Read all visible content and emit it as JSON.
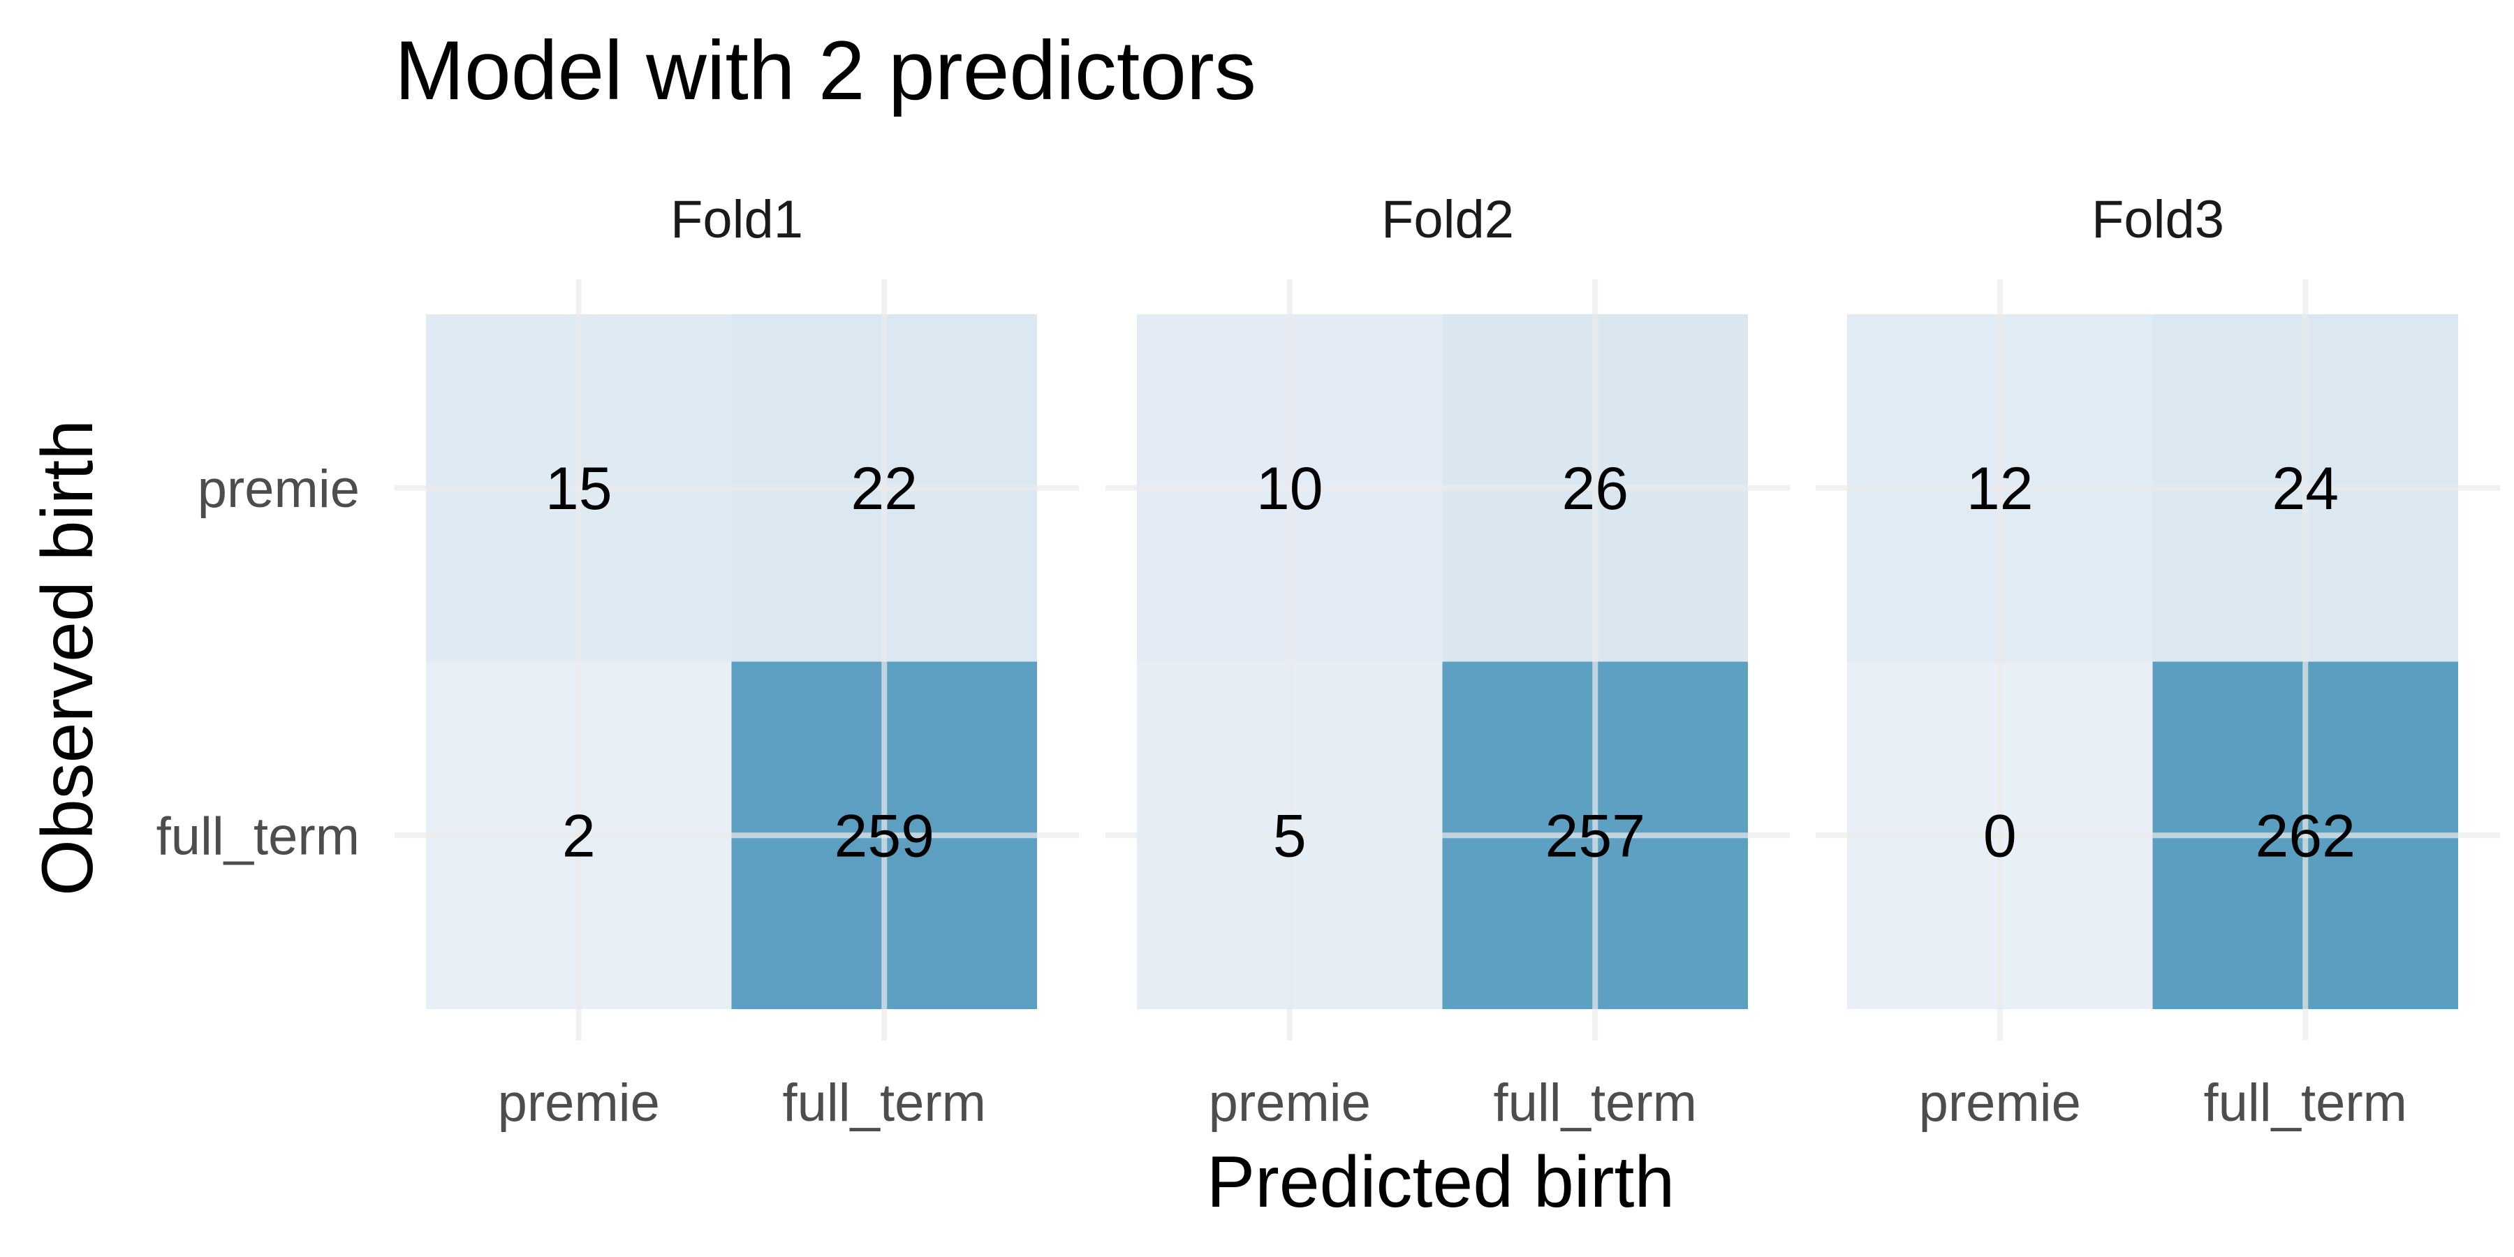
{
  "colors": {
    "low": "#e8eff6",
    "high": "#5a9ec0",
    "grid": "#ebebeb",
    "background": "#ffffff"
  },
  "chart_data": {
    "type": "heatmap",
    "title": "Model with 2 predictors",
    "xlabel": "Predicted birth",
    "ylabel": "Observed birth",
    "x_categories": [
      "premie",
      "full_term"
    ],
    "y_categories": [
      "premie",
      "full_term"
    ],
    "grid": true,
    "legend": "none",
    "facets": [
      {
        "name": "Fold1",
        "cells": [
          {
            "observed": "premie",
            "predicted": "premie",
            "value": 15
          },
          {
            "observed": "premie",
            "predicted": "full_term",
            "value": 22
          },
          {
            "observed": "full_term",
            "predicted": "premie",
            "value": 2
          },
          {
            "observed": "full_term",
            "predicted": "full_term",
            "value": 259
          }
        ]
      },
      {
        "name": "Fold2",
        "cells": [
          {
            "observed": "premie",
            "predicted": "premie",
            "value": 10
          },
          {
            "observed": "premie",
            "predicted": "full_term",
            "value": 26
          },
          {
            "observed": "full_term",
            "predicted": "premie",
            "value": 5
          },
          {
            "observed": "full_term",
            "predicted": "full_term",
            "value": 257
          }
        ]
      },
      {
        "name": "Fold3",
        "cells": [
          {
            "observed": "premie",
            "predicted": "premie",
            "value": 12
          },
          {
            "observed": "premie",
            "predicted": "full_term",
            "value": 24
          },
          {
            "observed": "full_term",
            "predicted": "premie",
            "value": 0
          },
          {
            "observed": "full_term",
            "predicted": "full_term",
            "value": 262
          }
        ]
      }
    ]
  }
}
